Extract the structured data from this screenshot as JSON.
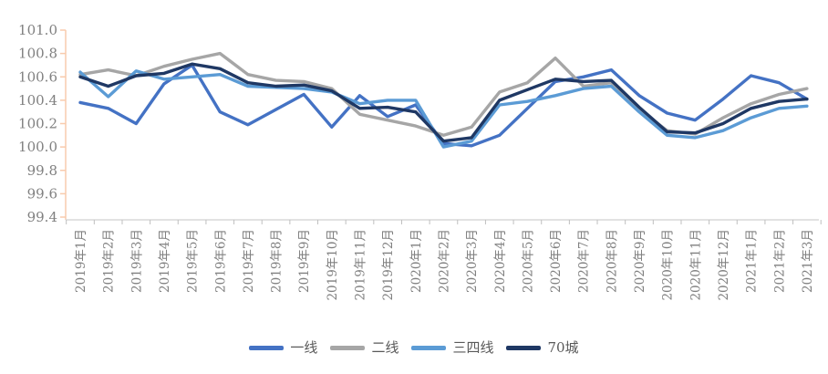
{
  "chart_data": {
    "type": "line",
    "title": "",
    "categories": [
      "2019年1月",
      "2019年2月",
      "2019年3月",
      "2019年4月",
      "2019年5月",
      "2019年6月",
      "2019年7月",
      "2019年8月",
      "2019年9月",
      "2019年10月",
      "2019年11月",
      "2019年12月",
      "2020年1月",
      "2020年2月",
      "2020年3月",
      "2020年4月",
      "2020年5月",
      "2020年6月",
      "2020年7月",
      "2020年8月",
      "2020年9月",
      "2020年10月",
      "2020年11月",
      "2020年12月",
      "2021年1月",
      "2021年2月",
      "2021年3月"
    ],
    "series": [
      {
        "name": "一线",
        "color": "#4472C4",
        "values": [
          100.38,
          100.33,
          100.2,
          100.54,
          100.7,
          100.3,
          100.19,
          100.32,
          100.45,
          100.17,
          100.44,
          100.26,
          100.36,
          100.03,
          100.01,
          100.1,
          100.33,
          100.56,
          100.6,
          100.66,
          100.44,
          100.29,
          100.23,
          100.41,
          100.61,
          100.55,
          100.41
        ]
      },
      {
        "name": "二线",
        "color": "#A6A6A6",
        "values": [
          100.62,
          100.66,
          100.61,
          100.69,
          100.75,
          100.8,
          100.62,
          100.57,
          100.56,
          100.5,
          100.28,
          100.23,
          100.18,
          100.1,
          100.17,
          100.47,
          100.55,
          100.76,
          100.52,
          100.55,
          100.32,
          100.14,
          100.11,
          100.25,
          100.37,
          100.45,
          100.5
        ]
      },
      {
        "name": "三四线",
        "color": "#5B9BD5",
        "values": [
          100.64,
          100.43,
          100.65,
          100.58,
          100.6,
          100.62,
          100.52,
          100.51,
          100.5,
          100.47,
          100.37,
          100.4,
          100.4,
          100.0,
          100.05,
          100.36,
          100.39,
          100.44,
          100.5,
          100.52,
          100.3,
          100.1,
          100.08,
          100.14,
          100.25,
          100.33,
          100.35
        ]
      },
      {
        "name": "70城",
        "color": "#1F3864",
        "values": [
          100.6,
          100.52,
          100.61,
          100.63,
          100.71,
          100.67,
          100.55,
          100.52,
          100.53,
          100.48,
          100.33,
          100.34,
          100.3,
          100.05,
          100.08,
          100.4,
          100.49,
          100.58,
          100.56,
          100.57,
          100.34,
          100.13,
          100.12,
          100.2,
          100.33,
          100.39,
          100.41
        ]
      }
    ],
    "ylim": [
      99.4,
      101.0
    ],
    "yticks": [
      "101.0",
      "100.8",
      "100.6",
      "100.4",
      "100.2",
      "100.0",
      "99.8",
      "99.6",
      "99.4"
    ],
    "grid": false,
    "legend_position": "bottom"
  },
  "style": {
    "y_axis_color": "#F8CBAD",
    "x_axis_color": "#D9D9D9",
    "x_tick_color": "#BFBFBF",
    "axis_label_color": "#808080",
    "legend_text_color": "#595959"
  }
}
